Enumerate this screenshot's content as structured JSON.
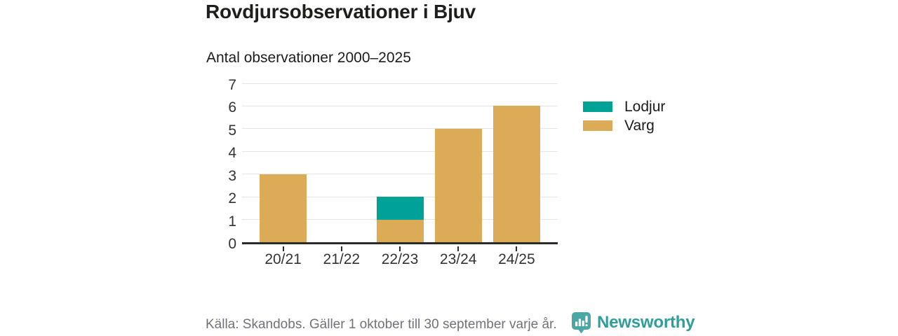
{
  "header": {
    "title": "Rovdjursobservationer i Bjuv",
    "subtitle": "Antal observationer 2000–2025"
  },
  "chart_data": {
    "type": "bar",
    "stacked": true,
    "title": "Rovdjursobservationer i Bjuv",
    "subtitle": "Antal observationer 2000–2025",
    "categories": [
      "20/21",
      "21/22",
      "22/23",
      "23/24",
      "24/25"
    ],
    "series": [
      {
        "name": "Lodjur",
        "color": "#00a298",
        "values": [
          0,
          0,
          1,
          0,
          0
        ]
      },
      {
        "name": "Varg",
        "color": "#dbab58",
        "values": [
          3,
          0,
          1,
          5,
          6
        ]
      }
    ],
    "totals": [
      3,
      0,
      2,
      5,
      6
    ],
    "xlabel": "",
    "ylabel": "",
    "ylim": [
      0,
      7
    ],
    "yticks": [
      0,
      1,
      2,
      3,
      4,
      5,
      6,
      7
    ],
    "grid": "horizontal",
    "legend_position": "right"
  },
  "footer": {
    "source": "Källa: Skandobs. Gäller 1 oktober till 30 september varje år.",
    "brand": "Newsworthy",
    "brand_color": "#2f9e9b",
    "logo_icon": "newsworthy-speech-bubble-bar-chart-icon"
  }
}
